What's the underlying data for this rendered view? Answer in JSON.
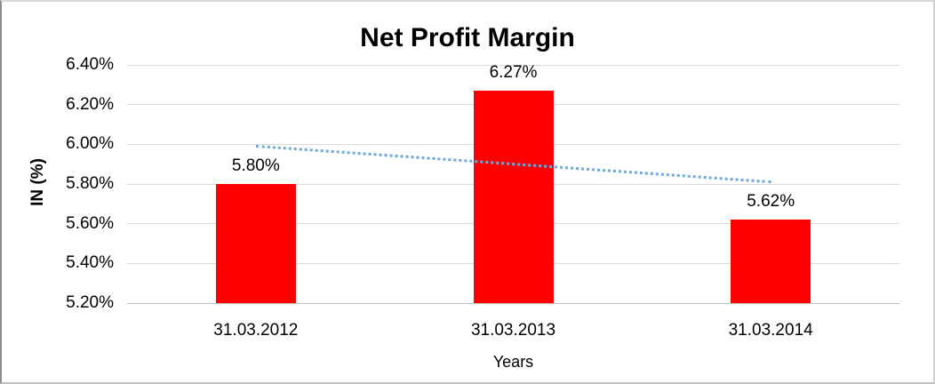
{
  "chart_data": {
    "type": "bar",
    "title": "Net Profit Margin",
    "xlabel": "Years",
    "ylabel": "IN (%)",
    "categories": [
      "31.03.2012",
      "31.03.2013",
      "31.03.2014"
    ],
    "values": [
      5.8,
      6.27,
      5.62
    ],
    "data_labels": [
      "5.80%",
      "6.27%",
      "5.62%"
    ],
    "ylim": [
      5.2,
      6.4
    ],
    "ytick_step": 0.2,
    "ytick_labels": [
      "6.40%",
      "6.20%",
      "6.00%",
      "5.80%",
      "5.60%",
      "5.40%",
      "5.20%"
    ],
    "grid": true,
    "legend": "none",
    "bar_color": "#ff0000",
    "gridline_color": "#d9d9d9",
    "baseline_color": "#bfbfbf",
    "trendline": {
      "type": "linear",
      "style": "dotted",
      "color": "#6fa8dc",
      "start_value": 5.99,
      "end_value": 5.81
    }
  }
}
